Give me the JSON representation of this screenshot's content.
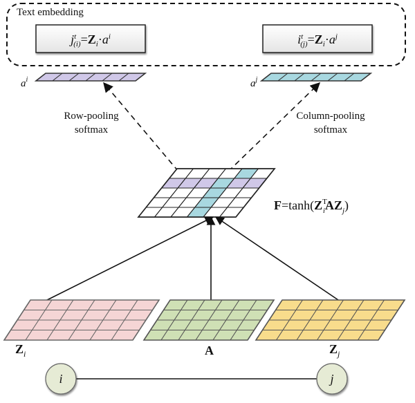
{
  "text_embedding": {
    "title": "Text embedding",
    "formula_left": {
      "lhs_base": "j",
      "lhs_sup": "t",
      "lhs_sub": "(i)",
      "eq": "=",
      "mat": "Z",
      "mat_sub": "i",
      "dot": "·",
      "vec": "a",
      "vec_sup": "i"
    },
    "formula_right": {
      "lhs_base": "i",
      "lhs_sup": "t",
      "lhs_sub": "(j)",
      "eq": "=",
      "mat": "Z",
      "mat_sub": "i",
      "dot": "·",
      "vec": "a",
      "vec_sup": "j"
    }
  },
  "vectors": {
    "left": {
      "base": "a",
      "sup": "i",
      "color": "#d0c8e8"
    },
    "right": {
      "base": "a",
      "sup": "j",
      "color": "#a8d8e0"
    }
  },
  "pooling": {
    "row": [
      "Row-pooling",
      "softmax"
    ],
    "column": [
      "Column-pooling",
      "softmax"
    ]
  },
  "affinity": {
    "formula": {
      "F": "F",
      "rest1": "=tanh(",
      "Z": "Z",
      "sup": "T",
      "sub": "i",
      "A": "A",
      "Z2": "Z",
      "sub2": "j",
      "close": ")"
    },
    "row_color": "#d0c8e8",
    "col_color": "#a8d8e0"
  },
  "matrices": [
    {
      "label": "Z",
      "sub": "i",
      "color": "#f5d5d5"
    },
    {
      "label": "A",
      "sub": "",
      "color": "#cfe0b5"
    },
    {
      "label": "Z",
      "sub": "j",
      "color": "#f8dc8c"
    }
  ],
  "nodes": {
    "left": "i",
    "right": "j",
    "color": "#e6ebd5"
  }
}
